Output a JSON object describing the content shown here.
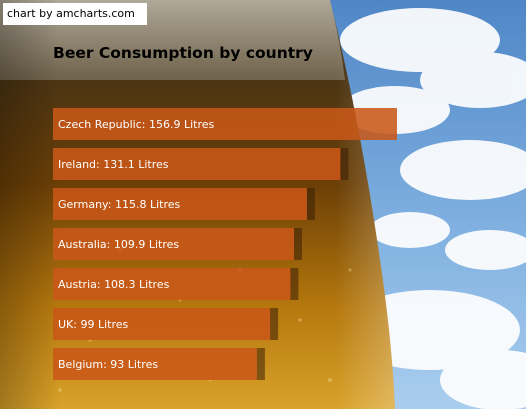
{
  "credit": {
    "label": "chart by amcharts.com"
  },
  "colors": {
    "bar_fill": "#e8641c",
    "bar_shadow": "#3a1f08",
    "label": "#ffffff",
    "title": "#000000"
  },
  "chart_data": {
    "type": "bar",
    "orientation": "horizontal",
    "title": "Beer Consumption by country",
    "unit": "Litres",
    "categories": [
      "Czech Republic",
      "Ireland",
      "Germany",
      "Australia",
      "Austria",
      "UK",
      "Belgium"
    ],
    "values": [
      156.9,
      131.1,
      115.8,
      109.9,
      108.3,
      99,
      93
    ],
    "data_labels": [
      "Czech Republic: 156.9 Litres",
      "Ireland: 131.1 Litres",
      "Germany: 115.8 Litres",
      "Australia: 109.9 Litres",
      "Austria: 108.3 Litres",
      "UK: 99 Litres",
      "Belgium: 93 Litres"
    ],
    "xlim": [
      0,
      156.9
    ],
    "grid": false,
    "legend": "none"
  }
}
